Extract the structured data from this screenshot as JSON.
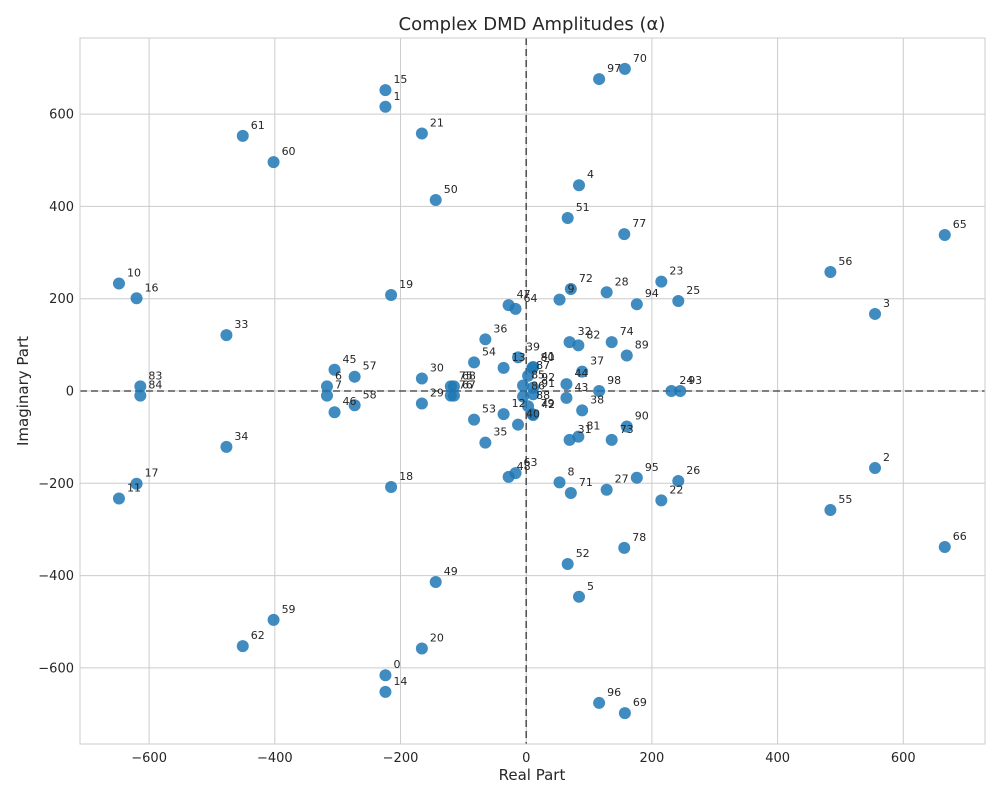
{
  "chart_data": {
    "type": "scatter",
    "title": "Complex DMD Amplitudes (α)",
    "xlabel": "Real Part",
    "ylabel": "Imaginary Part",
    "xlim": [
      -710,
      730
    ],
    "ylim": [
      -765,
      765
    ],
    "xticks": [
      -600,
      -400,
      -200,
      0,
      200,
      400,
      600
    ],
    "yticks": [
      -600,
      -400,
      -200,
      0,
      200,
      400,
      600
    ],
    "xtick_labels": [
      "−600",
      "−400",
      "−200",
      "0",
      "200",
      "400",
      "600"
    ],
    "ytick_labels": [
      "−600",
      "−400",
      "−200",
      "0",
      "200",
      "400",
      "600"
    ],
    "grid": true,
    "reference_lines": [
      "x=0 dashed",
      "y=0 dashed"
    ],
    "point_color": "#1f77b4",
    "points": [
      {
        "label": "0",
        "x": -224,
        "y": -616
      },
      {
        "label": "1",
        "x": -224,
        "y": 616
      },
      {
        "label": "2",
        "x": 555,
        "y": -167
      },
      {
        "label": "3",
        "x": 555,
        "y": 167
      },
      {
        "label": "4",
        "x": 84,
        "y": 446
      },
      {
        "label": "5",
        "x": 84,
        "y": -446
      },
      {
        "label": "6",
        "x": -317,
        "y": 10
      },
      {
        "label": "7",
        "x": -317,
        "y": -10
      },
      {
        "label": "8",
        "x": 53,
        "y": -198
      },
      {
        "label": "9",
        "x": 53,
        "y": 198
      },
      {
        "label": "10",
        "x": -648,
        "y": 233
      },
      {
        "label": "11",
        "x": -648,
        "y": -233
      },
      {
        "label": "12",
        "x": -36,
        "y": -50
      },
      {
        "label": "13",
        "x": -36,
        "y": 50
      },
      {
        "label": "14",
        "x": -224,
        "y": -652
      },
      {
        "label": "15",
        "x": -224,
        "y": 652
      },
      {
        "label": "16",
        "x": -620,
        "y": 201
      },
      {
        "label": "17",
        "x": -620,
        "y": -201
      },
      {
        "label": "18",
        "x": -215,
        "y": -208
      },
      {
        "label": "19",
        "x": -215,
        "y": 208
      },
      {
        "label": "20",
        "x": -166,
        "y": -558
      },
      {
        "label": "21",
        "x": -166,
        "y": 558
      },
      {
        "label": "22",
        "x": 215,
        "y": -237
      },
      {
        "label": "23",
        "x": 215,
        "y": 237
      },
      {
        "label": "24",
        "x": 231,
        "y": 0
      },
      {
        "label": "25",
        "x": 242,
        "y": 195
      },
      {
        "label": "26",
        "x": 242,
        "y": -195
      },
      {
        "label": "27",
        "x": 128,
        "y": -214
      },
      {
        "label": "28",
        "x": 128,
        "y": 214
      },
      {
        "label": "29",
        "x": -166,
        "y": -27
      },
      {
        "label": "30",
        "x": -166,
        "y": 27
      },
      {
        "label": "31",
        "x": 69,
        "y": -106
      },
      {
        "label": "32",
        "x": 69,
        "y": 106
      },
      {
        "label": "33",
        "x": -477,
        "y": 121
      },
      {
        "label": "34",
        "x": -477,
        "y": -121
      },
      {
        "label": "35",
        "x": -65,
        "y": -112
      },
      {
        "label": "36",
        "x": -65,
        "y": 112
      },
      {
        "label": "37",
        "x": 89,
        "y": 42
      },
      {
        "label": "38",
        "x": 89,
        "y": -42
      },
      {
        "label": "39",
        "x": -13,
        "y": 73
      },
      {
        "label": "40",
        "x": -13,
        "y": -73
      },
      {
        "label": "41",
        "x": 11,
        "y": 52
      },
      {
        "label": "42",
        "x": 11,
        "y": -52
      },
      {
        "label": "43",
        "x": 64,
        "y": -15
      },
      {
        "label": "44",
        "x": 64,
        "y": 15
      },
      {
        "label": "45",
        "x": -305,
        "y": 46
      },
      {
        "label": "46",
        "x": -305,
        "y": -46
      },
      {
        "label": "47",
        "x": -28,
        "y": 186
      },
      {
        "label": "48",
        "x": -28,
        "y": -186
      },
      {
        "label": "49",
        "x": -144,
        "y": -414
      },
      {
        "label": "50",
        "x": -144,
        "y": 414
      },
      {
        "label": "51",
        "x": 66,
        "y": 375
      },
      {
        "label": "52",
        "x": 66,
        "y": -375
      },
      {
        "label": "53",
        "x": -83,
        "y": -62
      },
      {
        "label": "54",
        "x": -83,
        "y": 62
      },
      {
        "label": "55",
        "x": 484,
        "y": -258
      },
      {
        "label": "56",
        "x": 484,
        "y": 258
      },
      {
        "label": "57",
        "x": -273,
        "y": 31
      },
      {
        "label": "58",
        "x": -273,
        "y": -31
      },
      {
        "label": "59",
        "x": -402,
        "y": -496
      },
      {
        "label": "60",
        "x": -402,
        "y": 496
      },
      {
        "label": "61",
        "x": -451,
        "y": 553
      },
      {
        "label": "62",
        "x": -451,
        "y": -553
      },
      {
        "label": "63",
        "x": -17,
        "y": -178
      },
      {
        "label": "64",
        "x": -17,
        "y": 178
      },
      {
        "label": "65",
        "x": 666,
        "y": 338
      },
      {
        "label": "66",
        "x": 666,
        "y": -338
      },
      {
        "label": "67",
        "x": -115,
        "y": -10
      },
      {
        "label": "68",
        "x": -115,
        "y": 10
      },
      {
        "label": "69",
        "x": 157,
        "y": -698
      },
      {
        "label": "70",
        "x": 157,
        "y": 698
      },
      {
        "label": "71",
        "x": 71,
        "y": -221
      },
      {
        "label": "72",
        "x": 71,
        "y": 221
      },
      {
        "label": "73",
        "x": 136,
        "y": -106
      },
      {
        "label": "74",
        "x": 136,
        "y": 106
      },
      {
        "label": "75",
        "x": -120,
        "y": 10
      },
      {
        "label": "76",
        "x": -120,
        "y": -10
      },
      {
        "label": "77",
        "x": 156,
        "y": 340
      },
      {
        "label": "78",
        "x": 156,
        "y": -340
      },
      {
        "label": "79",
        "x": 10,
        "y": -50
      },
      {
        "label": "80",
        "x": 10,
        "y": 50
      },
      {
        "label": "81",
        "x": 83,
        "y": -99
      },
      {
        "label": "82",
        "x": 83,
        "y": 99
      },
      {
        "label": "83",
        "x": -614,
        "y": 10
      },
      {
        "label": "84",
        "x": -614,
        "y": -10
      },
      {
        "label": "85",
        "x": -5,
        "y": 12
      },
      {
        "label": "86",
        "x": -5,
        "y": -12
      },
      {
        "label": "87",
        "x": 3,
        "y": 33
      },
      {
        "label": "88",
        "x": 3,
        "y": -33
      },
      {
        "label": "89",
        "x": 160,
        "y": 77
      },
      {
        "label": "90",
        "x": 160,
        "y": -77
      },
      {
        "label": "91",
        "x": 11,
        "y": -7
      },
      {
        "label": "92",
        "x": 11,
        "y": 7
      },
      {
        "label": "93",
        "x": 245,
        "y": 0
      },
      {
        "label": "94",
        "x": 176,
        "y": 188
      },
      {
        "label": "95",
        "x": 176,
        "y": -188
      },
      {
        "label": "96",
        "x": 116,
        "y": -676
      },
      {
        "label": "97",
        "x": 116,
        "y": 676
      },
      {
        "label": "98",
        "x": 116,
        "y": 0
      }
    ]
  }
}
